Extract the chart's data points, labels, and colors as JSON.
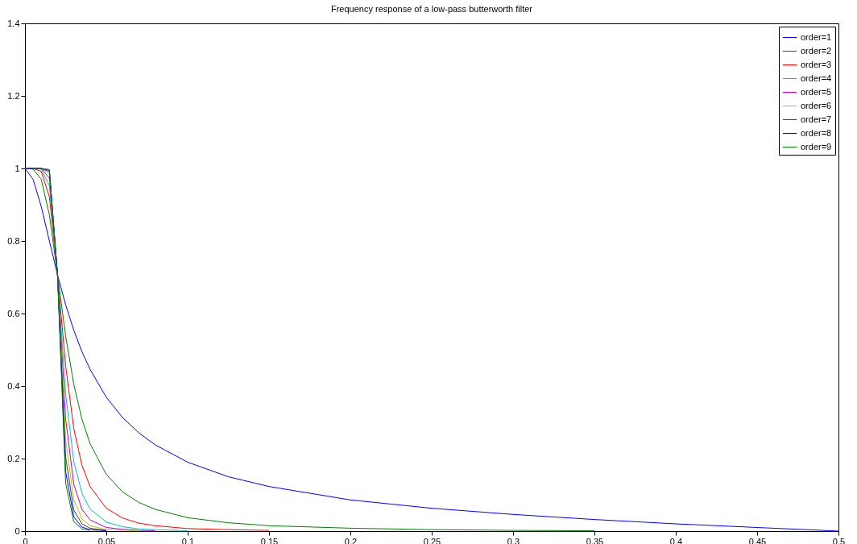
{
  "chart_data": {
    "type": "line",
    "title": "Frequency response of a low-pass butterworth filter",
    "x": [
      0,
      0.005,
      0.01,
      0.015,
      0.02,
      0.025,
      0.03,
      0.035,
      0.04,
      0.05,
      0.06,
      0.07,
      0.08,
      0.1,
      0.125,
      0.15,
      0.2,
      0.25,
      0.3,
      0.35,
      0.4,
      0.45,
      0.5
    ],
    "series": [
      {
        "name": "order=1",
        "color": "#0000ff",
        "values": [
          1,
          0.97,
          0.895,
          0.8,
          0.707,
          0.624,
          0.554,
          0.495,
          0.446,
          0.369,
          0.313,
          0.271,
          0.238,
          0.19,
          0.15,
          0.123,
          0.086,
          0.063,
          0.046,
          0.032,
          0.02,
          0.01,
          0
        ]
      },
      {
        "name": "order=2",
        "color": "#008000",
        "values": [
          1,
          0.998,
          0.97,
          0.872,
          0.707,
          0.538,
          0.405,
          0.309,
          0.241,
          0.156,
          0.108,
          0.079,
          0.06,
          0.037,
          0.023,
          0.015,
          0.008,
          0.004,
          0.002,
          0.001,
          null,
          null,
          null
        ]
      },
      {
        "name": "order=3",
        "color": "#ff0000",
        "values": [
          1,
          1,
          0.992,
          0.922,
          0.707,
          0.455,
          0.283,
          0.182,
          0.123,
          0.063,
          0.036,
          0.022,
          0.015,
          0.007,
          0.004,
          0.002,
          null,
          null,
          null,
          null,
          null,
          null,
          null
        ]
      },
      {
        "name": "order=4",
        "color": "#00bfbf",
        "values": [
          1,
          1,
          0.998,
          0.953,
          0.707,
          0.378,
          0.192,
          0.105,
          0.061,
          0.025,
          0.012,
          0.006,
          0.004,
          0.001,
          null,
          null,
          null,
          null,
          null,
          null,
          null,
          null,
          null
        ]
      },
      {
        "name": "order=5",
        "color": "#bf00bf",
        "values": [
          1,
          1,
          1,
          0.973,
          0.707,
          0.31,
          0.129,
          0.06,
          0.031,
          0.01,
          0.005,
          0.002,
          0.001,
          null,
          null,
          null,
          null,
          null,
          null,
          null,
          null,
          null,
          null
        ]
      },
      {
        "name": "order=6",
        "color": "#bfbf00",
        "values": [
          1,
          1,
          1,
          0.985,
          0.707,
          0.252,
          0.087,
          0.034,
          0.015,
          0.004,
          0.002,
          0.001,
          null,
          null,
          null,
          null,
          null,
          null,
          null,
          null,
          null,
          null,
          null
        ]
      },
      {
        "name": "order=7",
        "color": "#404040",
        "values": [
          1,
          1,
          1,
          0.991,
          0.707,
          0.204,
          0.058,
          0.02,
          0.008,
          0.002,
          null,
          null,
          null,
          null,
          null,
          null,
          null,
          null,
          null,
          null,
          null,
          null,
          null
        ]
      },
      {
        "name": "order=8",
        "color": "#0000ff",
        "values": [
          1,
          1,
          1,
          0.995,
          0.707,
          0.164,
          0.039,
          0.011,
          0.004,
          0.001,
          null,
          null,
          null,
          null,
          null,
          null,
          null,
          null,
          null,
          null,
          null,
          null,
          null
        ]
      },
      {
        "name": "order=9",
        "color": "#008000",
        "values": [
          null,
          1,
          1,
          0.997,
          0.707,
          0.132,
          0.026,
          0.006,
          0.002,
          null,
          null,
          null,
          null,
          null,
          null,
          null,
          null,
          null,
          null,
          null,
          null,
          null,
          null
        ]
      }
    ],
    "xlim": [
      0,
      0.5
    ],
    "xticks": [
      0,
      0.05,
      0.1,
      0.15,
      0.2,
      0.25,
      0.3,
      0.35,
      0.4,
      0.45,
      0.5
    ],
    "ylim": [
      0,
      1.4
    ],
    "yticks": [
      0,
      0.2,
      0.4,
      0.6,
      0.8,
      1,
      1.2,
      1.4
    ],
    "legend": "top right"
  }
}
